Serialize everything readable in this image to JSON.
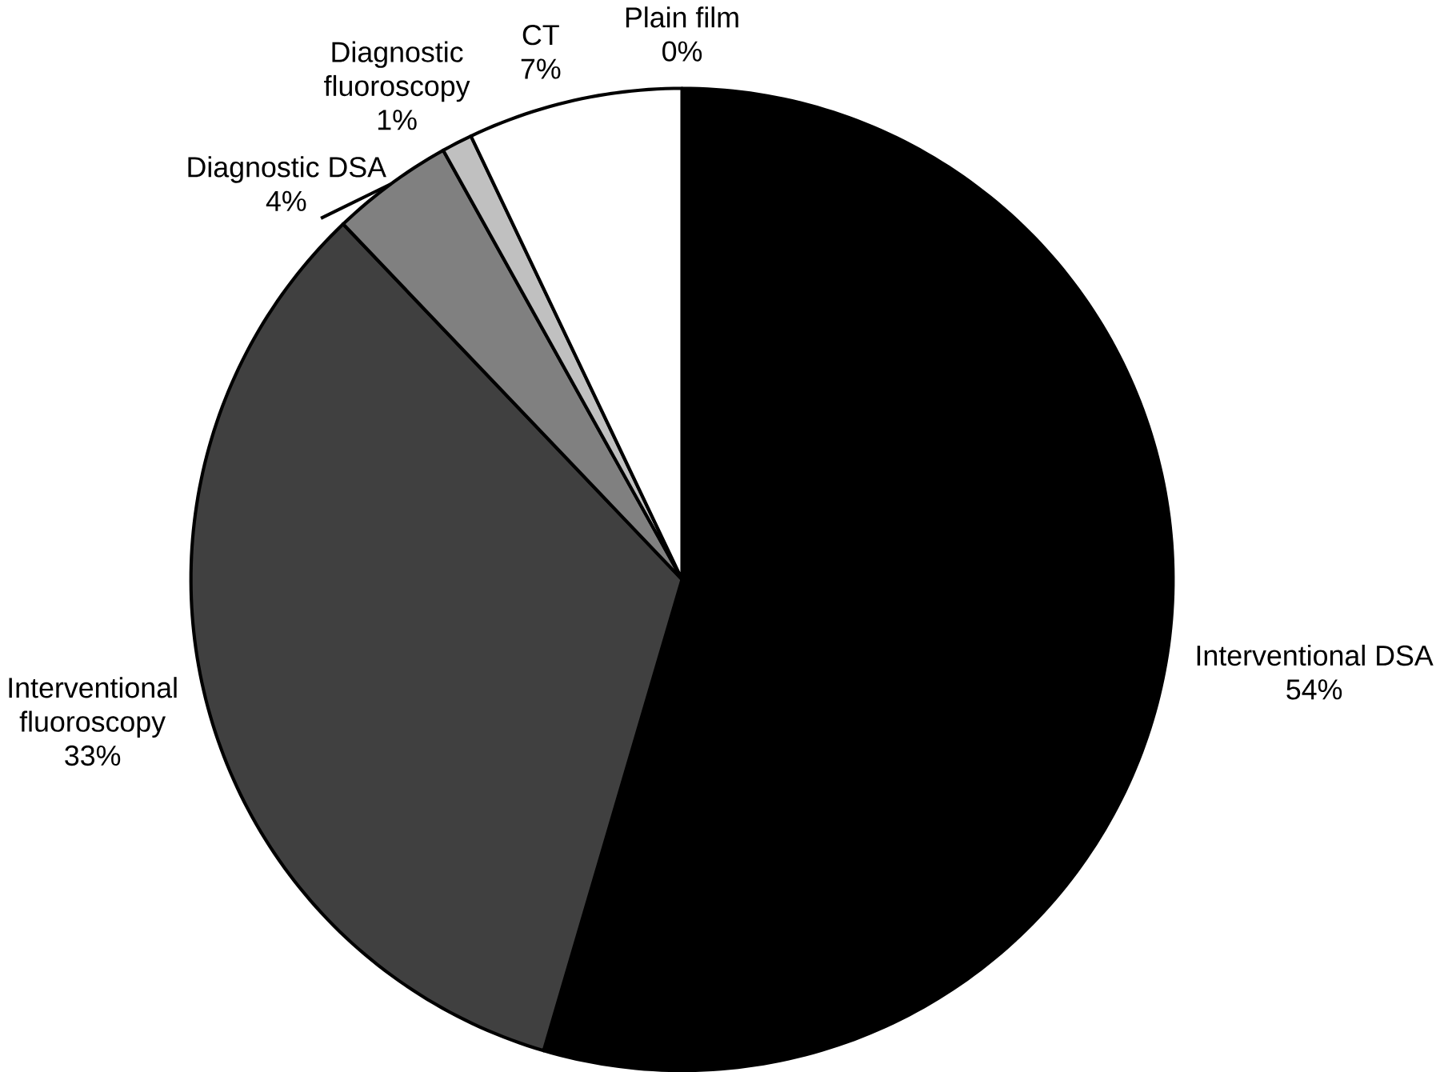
{
  "chart_data": {
    "type": "pie",
    "categories": [
      "Interventional DSA",
      "Interventional fluoroscopy",
      "Diagnostic DSA",
      "Diagnostic fluoroscopy",
      "CT",
      "Plain film"
    ],
    "values": [
      54,
      33,
      4,
      1,
      7,
      0
    ],
    "value_labels": [
      "54%",
      "33%",
      "4%",
      "1%",
      "7%",
      "0%"
    ],
    "colors": [
      "#000000",
      "#404040",
      "#808080",
      "#c0c0c0",
      "#ffffff",
      "#ffffff"
    ]
  }
}
